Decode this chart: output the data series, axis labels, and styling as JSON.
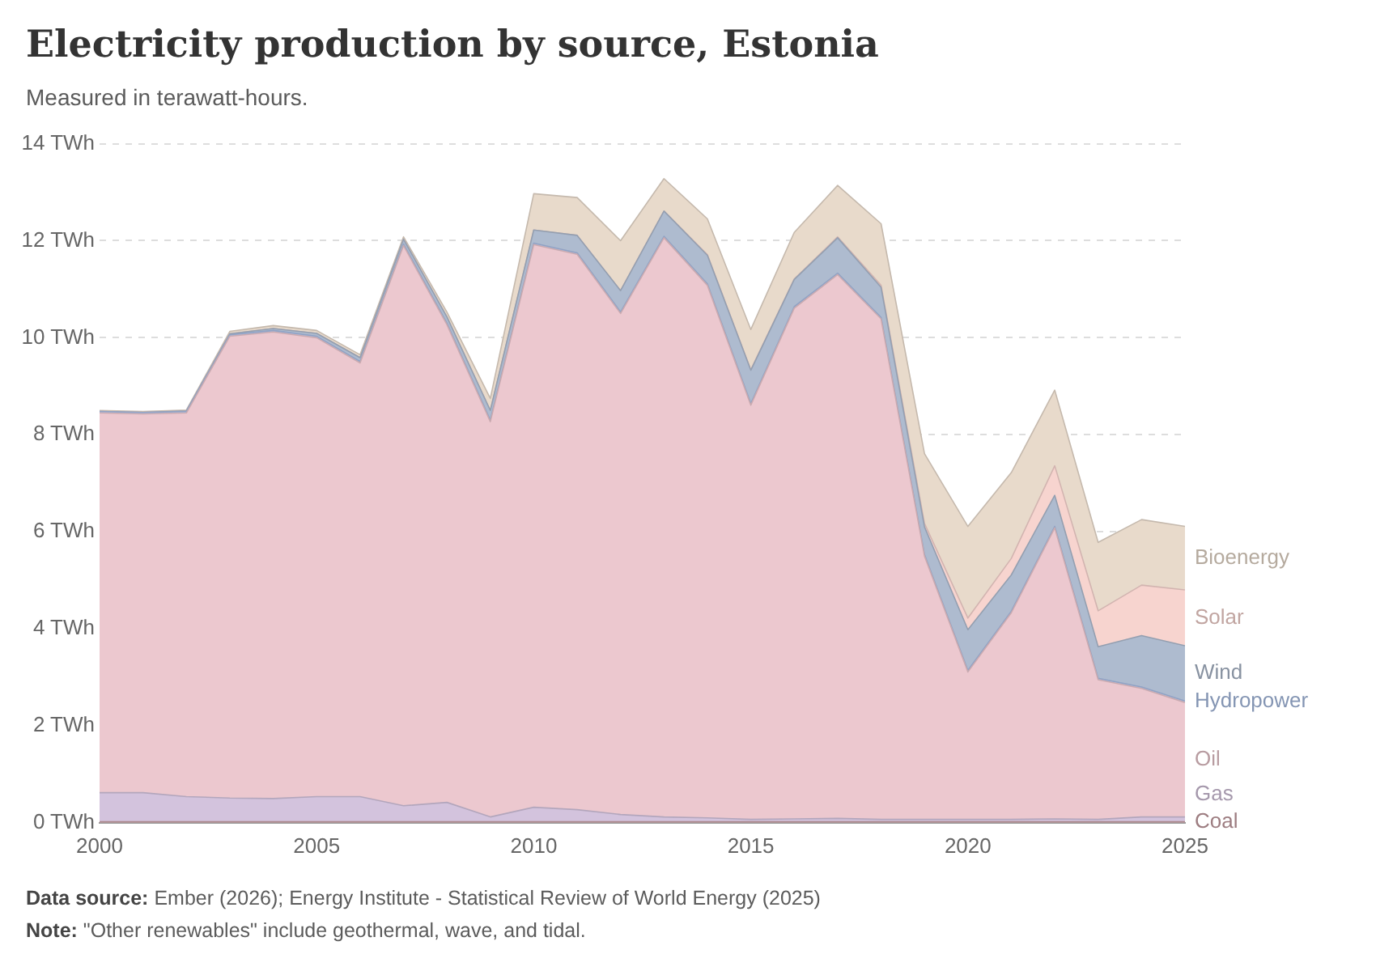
{
  "chart_data": {
    "type": "area",
    "stacked": true,
    "title": "Electricity production by source, Estonia",
    "subtitle": "Measured in terawatt-hours.",
    "x": [
      2000,
      2001,
      2002,
      2003,
      2004,
      2005,
      2006,
      2007,
      2008,
      2009,
      2010,
      2011,
      2012,
      2013,
      2014,
      2015,
      2016,
      2017,
      2018,
      2019,
      2020,
      2021,
      2022,
      2023,
      2024,
      2025
    ],
    "xlim": [
      2000,
      2025
    ],
    "xticks": [
      2000,
      2005,
      2010,
      2015,
      2020,
      2025
    ],
    "ylim": [
      0,
      14
    ],
    "yticks": [
      {
        "value": 0,
        "label": "0 TWh"
      },
      {
        "value": 2,
        "label": "2 TWh"
      },
      {
        "value": 4,
        "label": "4 TWh"
      },
      {
        "value": 6,
        "label": "6 TWh"
      },
      {
        "value": 8,
        "label": "8 TWh"
      },
      {
        "value": 10,
        "label": "10 TWh"
      },
      {
        "value": 12,
        "label": "12 TWh"
      },
      {
        "value": 14,
        "label": "14 TWh"
      }
    ],
    "grid": "y",
    "legend": false,
    "marker": "none",
    "series": [
      {
        "name": "Coal",
        "color": "#c9a0a6",
        "values": [
          0.02,
          0.02,
          0.02,
          0.02,
          0.02,
          0.02,
          0.02,
          0.02,
          0.02,
          0.02,
          0.02,
          0.02,
          0.02,
          0.02,
          0.02,
          0.02,
          0.02,
          0.02,
          0.02,
          0.02,
          0.02,
          0.02,
          0.02,
          0.02,
          0.02,
          0.02
        ]
      },
      {
        "name": "Gas",
        "color": "#d3c3dd",
        "values": [
          0.6,
          0.6,
          0.52,
          0.49,
          0.48,
          0.52,
          0.52,
          0.33,
          0.4,
          0.1,
          0.3,
          0.25,
          0.15,
          0.1,
          0.08,
          0.05,
          0.06,
          0.07,
          0.05,
          0.05,
          0.05,
          0.05,
          0.06,
          0.05,
          0.1,
          0.1
        ]
      },
      {
        "name": "Oil",
        "color": "#ecc8cf",
        "values": [
          7.83,
          7.81,
          7.91,
          9.52,
          9.62,
          9.46,
          8.94,
          11.55,
          9.85,
          8.15,
          11.6,
          11.45,
          10.33,
          11.94,
          10.98,
          8.54,
          10.53,
          11.21,
          10.32,
          5.43,
          3.04,
          4.26,
          6.0,
          2.88,
          2.65,
          2.36
        ]
      },
      {
        "name": "Hydropower",
        "color": "#a9bfe6",
        "values": [
          0.03,
          0.03,
          0.03,
          0.03,
          0.03,
          0.03,
          0.03,
          0.03,
          0.03,
          0.03,
          0.03,
          0.03,
          0.03,
          0.03,
          0.03,
          0.03,
          0.03,
          0.03,
          0.03,
          0.03,
          0.03,
          0.03,
          0.03,
          0.03,
          0.03,
          0.03
        ]
      },
      {
        "name": "Wind",
        "color": "#aebbcf",
        "values": [
          0,
          0,
          0.01,
          0.02,
          0.04,
          0.06,
          0.08,
          0.1,
          0.13,
          0.2,
          0.27,
          0.36,
          0.44,
          0.52,
          0.59,
          0.69,
          0.56,
          0.73,
          0.62,
          0.57,
          0.84,
          0.75,
          0.64,
          0.65,
          1.06,
          1.14
        ]
      },
      {
        "name": "Solar",
        "color": "#f7d4cf",
        "values": [
          0,
          0,
          0,
          0,
          0,
          0,
          0,
          0,
          0,
          0,
          0,
          0,
          0,
          0,
          0.01,
          0.01,
          0.01,
          0.02,
          0.04,
          0.07,
          0.24,
          0.34,
          0.61,
          0.74,
          1.04,
          1.15
        ]
      },
      {
        "name": "Bioenergy",
        "color": "#e8dacb",
        "values": [
          0.02,
          0.02,
          0.02,
          0.05,
          0.06,
          0.06,
          0.06,
          0.05,
          0.1,
          0.25,
          0.75,
          0.78,
          1.03,
          0.67,
          0.74,
          0.83,
          0.96,
          1.06,
          1.27,
          1.44,
          1.89,
          1.77,
          1.56,
          1.41,
          1.35,
          1.31
        ]
      }
    ],
    "annotations": [
      "Data source: Ember (2026); Energy Institute - Statistical Review of World Energy (2025)",
      "Note: \"Other renewables\" include geothermal, wave, and tidal."
    ]
  }
}
